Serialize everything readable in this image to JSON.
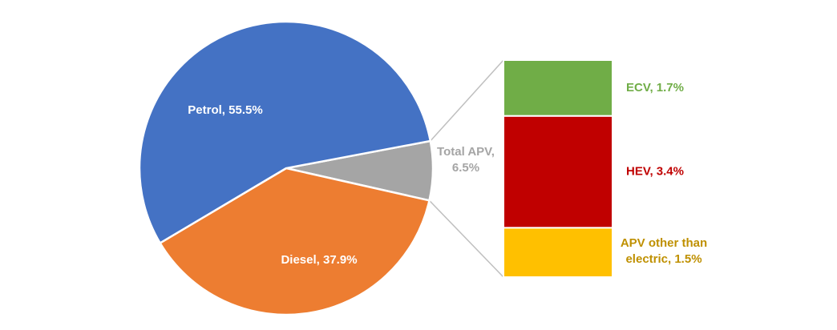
{
  "chart_data": {
    "type": "pie",
    "subtype": "bar-of-pie",
    "slices": [
      {
        "name": "Petrol",
        "value": 55.5,
        "label_line1": "Petrol, 55.5%",
        "color": "#4472C4",
        "label_color": "#ffffff"
      },
      {
        "name": "Diesel",
        "value": 37.9,
        "label_line1": "Diesel, 37.9%",
        "color": "#ED7D31",
        "label_color": "#ffffff"
      },
      {
        "name": "Total APV",
        "value": 6.5,
        "label_line1": "Total APV,",
        "label_line2": "6.5%",
        "color": "#A5A5A5",
        "label_color": "#A5A5A5"
      }
    ],
    "breakdown": [
      {
        "name": "ECV",
        "value": 1.7,
        "label_line1": "ECV, 1.7%",
        "color": "#70AD47",
        "label_color": "#70AD47"
      },
      {
        "name": "HEV",
        "value": 3.4,
        "label_line1": "HEV, 3.4%",
        "color": "#C00000",
        "label_color": "#C00000"
      },
      {
        "name": "APV other than electric",
        "value": 1.5,
        "label_line1": "APV other than",
        "label_line2": "electric, 1.5%",
        "color": "#FFC000",
        "label_color": "#BF9000"
      }
    ],
    "legend": "none",
    "connector_color": "#BFBFBF"
  }
}
